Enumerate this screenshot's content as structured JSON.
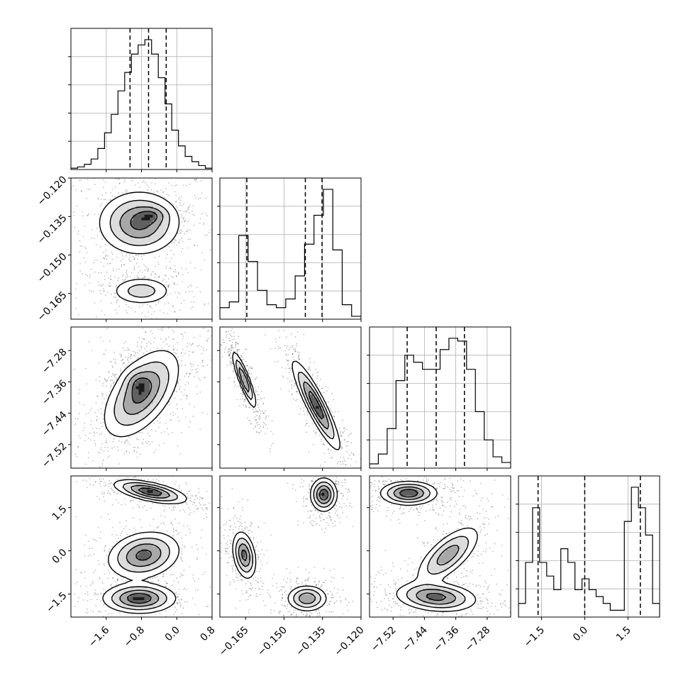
{
  "chart_data": {
    "type": "corner",
    "grid": true,
    "variables": [
      {
        "name": "",
        "range": [
          -2.4,
          0.8
        ],
        "ticks": [
          -1.6,
          -0.8,
          0.0,
          0.8
        ],
        "tick_labels": [
          "−1.6",
          "−0.8",
          "0.0",
          "0.8"
        ]
      },
      {
        "name": "",
        "range": [
          -0.175,
          -0.12
        ],
        "ticks": [
          -0.165,
          -0.15,
          -0.135,
          -0.12
        ],
        "tick_labels": [
          "−0.165",
          "−0.150",
          "−0.135",
          "−0.120"
        ]
      },
      {
        "name": "",
        "range": [
          -7.58,
          -7.22
        ],
        "ticks": [
          -7.52,
          -7.44,
          -7.36,
          -7.28
        ],
        "tick_labels": [
          "−7.52",
          "−7.44",
          "−7.36",
          "−7.28"
        ]
      },
      {
        "name": "",
        "range": [
          -2.3,
          2.6
        ],
        "ticks": [
          -1.5,
          0.0,
          1.5
        ],
        "tick_labels": [
          "−1.5",
          "0.0",
          "1.5"
        ]
      }
    ],
    "histograms": [
      {
        "variable": 0,
        "bin_range": [
          -2.4,
          0.8
        ],
        "counts": [
          1,
          2,
          4,
          8,
          16,
          28,
          42,
          60,
          74,
          88,
          95,
          99,
          88,
          70,
          50,
          30,
          18,
          10,
          6,
          3,
          1
        ],
        "quantiles": [
          -1.06,
          -0.64,
          -0.24
        ]
      },
      {
        "variable": 1,
        "bin_range": [
          -0.175,
          -0.12
        ],
        "counts": [
          8,
          12,
          58,
          40,
          20,
          10,
          8,
          14,
          30,
          52,
          72,
          90,
          48,
          10,
          2
        ],
        "quantiles": [
          -0.1645,
          -0.1417,
          -0.1352
        ]
      },
      {
        "variable": 2,
        "bin_range": [
          -7.58,
          -7.22
        ],
        "counts": [
          3,
          10,
          28,
          62,
          80,
          75,
          70,
          70,
          84,
          92,
          90,
          70,
          40,
          20,
          8,
          4
        ],
        "quantiles": [
          -7.484,
          -7.41,
          -7.338
        ]
      },
      {
        "variable": 3,
        "bin_range": [
          -2.3,
          2.6
        ],
        "counts": [
          10,
          40,
          80,
          40,
          30,
          20,
          50,
          40,
          20,
          28,
          20,
          15,
          10,
          5,
          5,
          70,
          95,
          80,
          60,
          10
        ],
        "quantiles": [
          -1.62,
          0.0,
          1.93
        ]
      }
    ],
    "pairs": [
      {
        "x": 0,
        "y": 1,
        "modes": [
          {
            "mx": -0.85,
            "my": -0.1375,
            "sx": 0.45,
            "sy": 0.006,
            "rho": 0.0,
            "w": 0.7
          },
          {
            "mx": -0.55,
            "my": -0.1345,
            "sx": 0.2,
            "sy": 0.002,
            "rho": 0.0,
            "w": 0.25
          },
          {
            "mx": -0.8,
            "my": -0.164,
            "sx": 0.35,
            "sy": 0.0028,
            "rho": 0.0,
            "w": 0.35
          }
        ]
      },
      {
        "x": 0,
        "y": 2,
        "modes": [
          {
            "mx": -0.8,
            "my": -7.39,
            "sx": 0.42,
            "sy": 0.055,
            "rho": 0.55,
            "w": 1.0
          },
          {
            "mx": -0.9,
            "my": -7.36,
            "sx": 0.18,
            "sy": 0.02,
            "rho": 0.0,
            "w": 0.3
          }
        ]
      },
      {
        "x": 0,
        "y": 3,
        "modes": [
          {
            "mx": -0.6,
            "my": 2.05,
            "sx": 0.4,
            "sy": 0.2,
            "rho": -0.6,
            "w": 0.4
          },
          {
            "mx": -0.75,
            "my": -0.15,
            "sx": 0.4,
            "sy": 0.4,
            "rho": 0.2,
            "w": 0.35
          },
          {
            "mx": -0.85,
            "my": -1.65,
            "sx": 0.4,
            "sy": 0.25,
            "rho": 0.0,
            "w": 0.4
          }
        ]
      },
      {
        "x": 1,
        "y": 2,
        "modes": [
          {
            "mx": -0.1655,
            "my": -7.355,
            "sx": 0.0023,
            "sy": 0.036,
            "rho": -0.88,
            "w": 0.45
          },
          {
            "mx": -0.1375,
            "my": -7.42,
            "sx": 0.0045,
            "sy": 0.055,
            "rho": -0.9,
            "w": 0.55
          }
        ]
      },
      {
        "x": 1,
        "y": 3,
        "modes": [
          {
            "mx": -0.1655,
            "my": -0.15,
            "sx": 0.0022,
            "sy": 0.4,
            "rho": -0.3,
            "w": 0.4
          },
          {
            "mx": -0.1345,
            "my": 1.95,
            "sx": 0.0025,
            "sy": 0.28,
            "rho": 0.0,
            "w": 0.45
          },
          {
            "mx": -0.141,
            "my": -1.65,
            "sx": 0.0038,
            "sy": 0.22,
            "rho": 0.0,
            "w": 0.35
          }
        ]
      },
      {
        "x": 2,
        "y": 3,
        "modes": [
          {
            "mx": -7.48,
            "my": 2.0,
            "sx": 0.035,
            "sy": 0.2,
            "rho": 0.0,
            "w": 0.5
          },
          {
            "mx": -7.38,
            "my": -0.15,
            "sx": 0.04,
            "sy": 0.5,
            "rho": 0.7,
            "w": 0.35
          },
          {
            "mx": -7.41,
            "my": -1.6,
            "sx": 0.05,
            "sy": 0.25,
            "rho": -0.2,
            "w": 0.45
          }
        ]
      }
    ]
  }
}
